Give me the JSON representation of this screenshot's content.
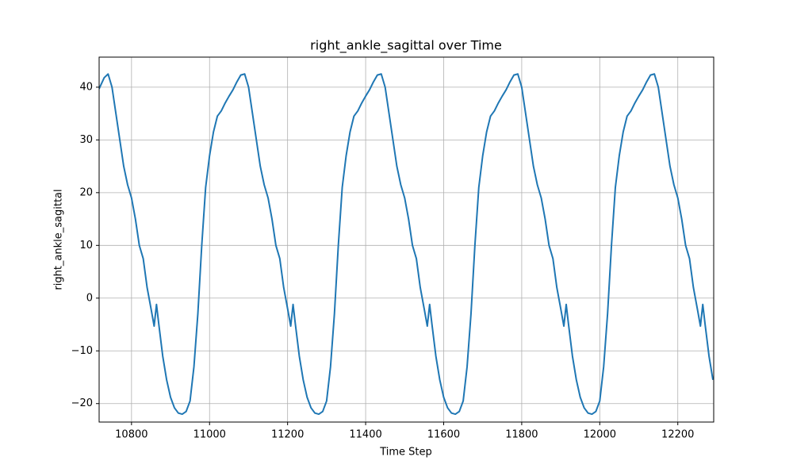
{
  "chart_data": {
    "type": "line",
    "title": "right_ankle_sagittal over Time",
    "x_label": "Time Step",
    "y_label": "right_ankle_sagittal",
    "color": "#1f77b4",
    "grid": true,
    "xlim": [
      10717,
      12292
    ],
    "ylim": [
      -23.5,
      45.7
    ],
    "xticks": [
      10800,
      11000,
      11200,
      11400,
      11600,
      11800,
      12000,
      12200
    ],
    "yticks": [
      {
        "value": -20,
        "label": "−20"
      },
      {
        "value": -10,
        "label": "−10"
      },
      0,
      10,
      20,
      30,
      40
    ],
    "x": [
      10717,
      10730,
      10740,
      10750,
      10760,
      10770,
      10780,
      10790,
      10800,
      10810,
      10820,
      10830,
      10840,
      10850,
      10858,
      10864,
      10870,
      10880,
      10890,
      10900,
      10910,
      10920,
      10930,
      10940,
      10950,
      10960,
      10970,
      10980,
      10990,
      11000,
      11010,
      11020,
      11030,
      11040,
      11050,
      11060,
      11070,
      11080,
      11090,
      11100,
      11110,
      11120,
      11130,
      11140,
      11150,
      11160,
      11170,
      11180,
      11190,
      11200,
      11208,
      11214,
      11220,
      11230,
      11240,
      11250,
      11260,
      11270,
      11280,
      11290,
      11300,
      11310,
      11320,
      11330,
      11340,
      11350,
      11360,
      11370,
      11380,
      11390,
      11400,
      11410,
      11420,
      11430,
      11440,
      11450,
      11460,
      11470,
      11480,
      11490,
      11500,
      11510,
      11520,
      11530,
      11540,
      11550,
      11558,
      11564,
      11570,
      11580,
      11590,
      11600,
      11610,
      11620,
      11630,
      11640,
      11650,
      11660,
      11670,
      11680,
      11690,
      11700,
      11710,
      11720,
      11730,
      11740,
      11750,
      11760,
      11770,
      11780,
      11790,
      11800,
      11810,
      11820,
      11830,
      11840,
      11850,
      11860,
      11870,
      11880,
      11890,
      11900,
      11908,
      11914,
      11920,
      11930,
      11940,
      11950,
      11960,
      11970,
      11980,
      11990,
      12000,
      12010,
      12020,
      12030,
      12040,
      12050,
      12060,
      12070,
      12080,
      12090,
      12100,
      12110,
      12120,
      12130,
      12140,
      12150,
      12160,
      12170,
      12180,
      12190,
      12200,
      12210,
      12220,
      12230,
      12240,
      12250,
      12258,
      12264,
      12270,
      12280,
      12290
    ],
    "values": [
      39.7,
      41.8,
      42.5,
      40,
      35,
      30,
      25,
      21.5,
      19,
      15,
      10,
      7.5,
      2,
      -2,
      -5.3,
      -1.2,
      -5,
      -11,
      -15.5,
      -18.8,
      -20.8,
      -21.8,
      -22,
      -21.5,
      -19.5,
      -13,
      -3,
      10,
      21,
      27,
      31.5,
      34.5,
      35.5,
      37,
      38.3,
      39.5,
      41,
      42.3,
      42.5,
      40,
      35,
      30,
      25,
      21.5,
      19,
      15,
      10,
      7.5,
      2,
      -2,
      -5.3,
      -1.2,
      -5,
      -11,
      -15.5,
      -18.8,
      -20.8,
      -21.8,
      -22,
      -21.5,
      -19.5,
      -13,
      -3,
      10,
      21,
      27,
      31.5,
      34.5,
      35.5,
      37,
      38.3,
      39.5,
      41,
      42.3,
      42.5,
      40,
      35,
      30,
      25,
      21.5,
      19,
      15,
      10,
      7.5,
      2,
      -2,
      -5.3,
      -1.2,
      -5,
      -11,
      -15.5,
      -18.8,
      -20.8,
      -21.8,
      -22,
      -21.5,
      -19.5,
      -13,
      -3,
      10,
      21,
      27,
      31.5,
      34.5,
      35.5,
      37,
      38.3,
      39.5,
      41,
      42.3,
      42.5,
      40,
      35,
      30,
      25,
      21.5,
      19,
      15,
      10,
      7.5,
      2,
      -2,
      -5.3,
      -1.2,
      -5,
      -11,
      -15.5,
      -18.8,
      -20.8,
      -21.8,
      -22,
      -21.5,
      -19.5,
      -13,
      -3,
      10,
      21,
      27,
      31.5,
      34.5,
      35.5,
      37,
      38.3,
      39.5,
      41,
      42.3,
      42.5,
      40,
      35,
      30,
      25,
      21.5,
      19,
      15,
      10,
      7.5,
      2,
      -2,
      -5.3,
      -1.2,
      -5,
      -11,
      -15.5
    ]
  }
}
